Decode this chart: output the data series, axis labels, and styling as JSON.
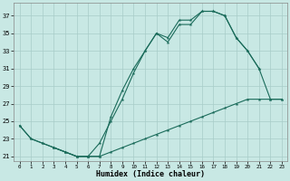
{
  "bg_color": "#c8e8e4",
  "grid_color": "#a8ccc8",
  "line_color": "#1a6b5a",
  "xlabel": "Humidex (Indice chaleur)",
  "ylim": [
    20.5,
    38.5
  ],
  "xlim": [
    -0.5,
    23.5
  ],
  "yticks": [
    21,
    23,
    25,
    27,
    29,
    31,
    33,
    35,
    37
  ],
  "xticks": [
    0,
    1,
    2,
    3,
    4,
    5,
    6,
    7,
    8,
    9,
    10,
    11,
    12,
    13,
    14,
    15,
    16,
    17,
    18,
    19,
    20,
    21,
    22,
    23
  ],
  "line_upper_x": [
    0,
    1,
    2,
    3,
    4,
    5,
    6,
    7,
    8,
    9,
    10,
    11,
    12,
    13,
    14,
    15,
    16,
    17,
    18,
    19,
    20,
    21
  ],
  "line_upper_y": [
    24.5,
    23.0,
    22.5,
    22.0,
    21.5,
    21.0,
    21.0,
    21.0,
    25.5,
    28.5,
    31.0,
    33.0,
    35.0,
    34.5,
    36.5,
    36.5,
    37.5,
    37.5,
    37.0,
    34.5,
    33.0,
    31.0
  ],
  "line_lower_x": [
    0,
    1,
    2,
    3,
    4,
    5,
    6,
    7,
    8,
    9,
    10,
    11,
    12,
    13,
    14,
    15,
    16,
    17,
    18,
    19,
    20,
    21,
    22,
    23
  ],
  "line_lower_y": [
    24.5,
    23.0,
    22.5,
    22.0,
    21.5,
    21.0,
    21.0,
    21.0,
    21.5,
    22.0,
    22.5,
    23.0,
    23.5,
    24.0,
    24.5,
    25.0,
    25.5,
    26.0,
    26.5,
    27.0,
    27.5,
    27.5,
    27.5,
    27.5
  ],
  "line_mid_x": [
    3,
    4,
    5,
    6,
    7,
    8,
    9,
    10,
    11,
    12,
    13,
    14,
    15,
    16,
    17,
    18,
    19,
    20,
    21,
    22,
    23
  ],
  "line_mid_y": [
    22.0,
    21.5,
    21.0,
    21.0,
    22.5,
    25.0,
    27.5,
    30.5,
    33.0,
    35.0,
    34.0,
    36.0,
    36.0,
    37.5,
    37.5,
    37.0,
    34.5,
    33.0,
    31.0,
    27.5,
    27.5
  ]
}
